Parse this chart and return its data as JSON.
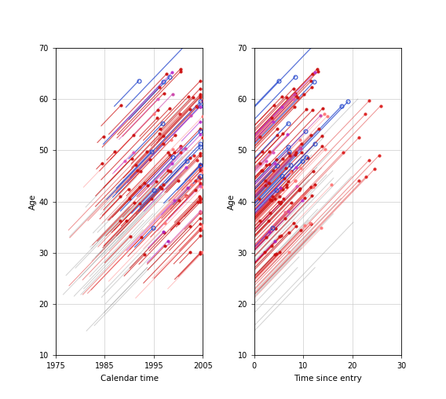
{
  "left_xlabel": "Calendar time",
  "right_xlabel": "Time since entry",
  "ylabel": "Age",
  "left_xlim": [
    1975,
    2005
  ],
  "right_xlim": [
    0,
    30
  ],
  "ylim": [
    10,
    70
  ],
  "left_xticks": [
    1975,
    1985,
    1995,
    2005
  ],
  "right_xticks": [
    0,
    10,
    20,
    30
  ],
  "yticks": [
    10,
    20,
    30,
    40,
    50,
    60,
    70
  ],
  "bg_color": "#ffffff",
  "grid_color": "#cccccc"
}
